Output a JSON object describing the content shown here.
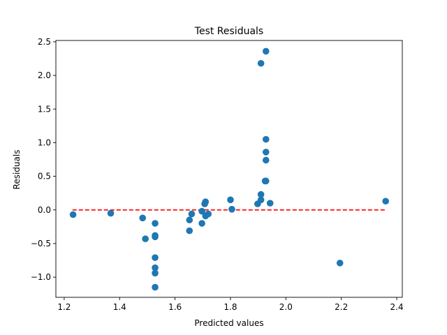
{
  "chart_data": {
    "type": "scatter",
    "title": "Test Residuals",
    "xlabel": "Predicted values",
    "ylabel": "Residuals",
    "xlim": [
      1.17,
      2.42
    ],
    "ylim": [
      -1.3,
      2.52
    ],
    "x_ticks": [
      1.2,
      1.4,
      1.6,
      1.8,
      2.0,
      2.2,
      2.4
    ],
    "x_tick_labels": [
      "1.2",
      "1.4",
      "1.6",
      "1.8",
      "2.0",
      "2.2",
      "2.4"
    ],
    "y_ticks": [
      -1.0,
      -0.5,
      0.0,
      0.5,
      1.0,
      1.5,
      2.0,
      2.5
    ],
    "y_tick_labels": [
      "−1.0",
      "−0.5",
      "0.0",
      "0.5",
      "1.0",
      "1.5",
      "2.0",
      "2.5"
    ],
    "grid": false,
    "marker_color": "#1f77b4",
    "reference_line": {
      "y": 0.0,
      "x_start": 1.23,
      "x_end": 2.36,
      "color": "#ff0000",
      "style": "dashed"
    },
    "points": [
      {
        "x": 1.232,
        "y": -0.07
      },
      {
        "x": 1.368,
        "y": -0.05
      },
      {
        "x": 1.483,
        "y": -0.12
      },
      {
        "x": 1.493,
        "y": -0.43
      },
      {
        "x": 1.528,
        "y": -0.2
      },
      {
        "x": 1.528,
        "y": -0.38
      },
      {
        "x": 1.528,
        "y": -0.4
      },
      {
        "x": 1.528,
        "y": -0.71
      },
      {
        "x": 1.528,
        "y": -0.86
      },
      {
        "x": 1.528,
        "y": -0.94
      },
      {
        "x": 1.528,
        "y": -1.15
      },
      {
        "x": 1.652,
        "y": -0.15
      },
      {
        "x": 1.652,
        "y": -0.31
      },
      {
        "x": 1.66,
        "y": -0.06
      },
      {
        "x": 1.697,
        "y": -0.02
      },
      {
        "x": 1.697,
        "y": -0.2
      },
      {
        "x": 1.707,
        "y": 0.09
      },
      {
        "x": 1.71,
        "y": 0.12
      },
      {
        "x": 1.71,
        "y": -0.09
      },
      {
        "x": 1.72,
        "y": -0.06
      },
      {
        "x": 1.8,
        "y": 0.15
      },
      {
        "x": 1.805,
        "y": 0.01
      },
      {
        "x": 1.898,
        "y": 0.09
      },
      {
        "x": 1.91,
        "y": 2.18
      },
      {
        "x": 1.91,
        "y": 0.23
      },
      {
        "x": 1.91,
        "y": 0.15
      },
      {
        "x": 1.925,
        "y": 0.43
      },
      {
        "x": 1.928,
        "y": 2.36
      },
      {
        "x": 1.928,
        "y": 1.05
      },
      {
        "x": 1.928,
        "y": 0.86
      },
      {
        "x": 1.928,
        "y": 0.74
      },
      {
        "x": 1.928,
        "y": 0.43
      },
      {
        "x": 1.943,
        "y": 0.1
      },
      {
        "x": 2.195,
        "y": -0.79
      },
      {
        "x": 2.36,
        "y": 0.13
      }
    ]
  }
}
